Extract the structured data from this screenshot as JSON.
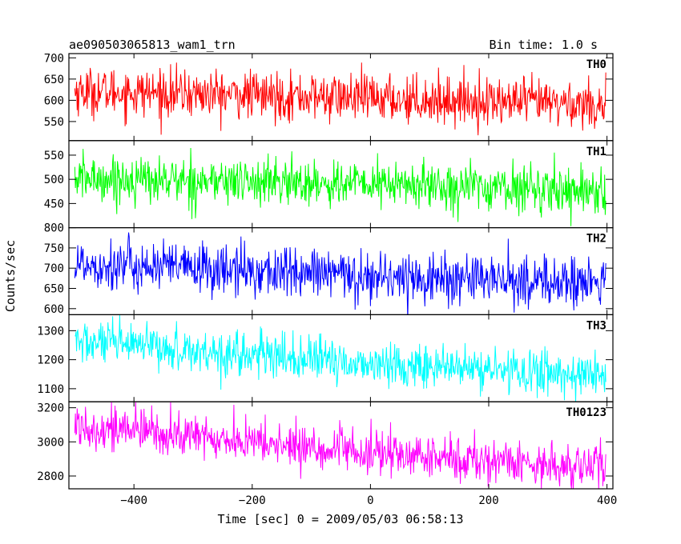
{
  "header": {
    "left": "ae090503065813_wam1_trn",
    "right": "Bin time: 1.0 s"
  },
  "chart_data": {
    "type": "line",
    "xlabel": "Time [sec] 0 = 2009/05/03 06:58:13",
    "ylabel": "Counts/sec",
    "xlim": [
      -510,
      410
    ],
    "xticks": [
      -400,
      -200,
      0,
      200,
      400
    ],
    "x_step": 1.0,
    "x_range": [
      -500,
      398
    ],
    "panels": [
      {
        "name": "TH0",
        "color": "#ff0000",
        "ylim": [
          505,
          710
        ],
        "yticks": [
          550,
          600,
          650,
          700
        ],
        "trend": [
          [
            -500,
            622
          ],
          [
            0,
            605
          ],
          [
            400,
            590
          ]
        ],
        "noise": 28
      },
      {
        "name": "TH1",
        "color": "#00ff00",
        "ylim": [
          400,
          580
        ],
        "yticks": [
          450,
          500,
          550
        ],
        "trend": [
          [
            -500,
            502
          ],
          [
            0,
            490
          ],
          [
            400,
            477
          ]
        ],
        "noise": 24
      },
      {
        "name": "TH2",
        "color": "#0000ff",
        "ylim": [
          585,
          800
        ],
        "yticks": [
          600,
          650,
          700,
          750,
          800
        ],
        "trend": [
          [
            -500,
            712
          ],
          [
            0,
            680
          ],
          [
            400,
            662
          ]
        ],
        "noise": 32
      },
      {
        "name": "TH3",
        "color": "#00ffff",
        "ylim": [
          1055,
          1355
        ],
        "yticks": [
          1100,
          1200,
          1300
        ],
        "trend": [
          [
            -500,
            1262
          ],
          [
            0,
            1185
          ],
          [
            400,
            1145
          ]
        ],
        "noise": 38
      },
      {
        "name": "TH0123",
        "color": "#ff00ff",
        "ylim": [
          2725,
          3235
        ],
        "yticks": [
          2800,
          3000,
          3200
        ],
        "trend": [
          [
            -500,
            3100
          ],
          [
            0,
            2930
          ],
          [
            400,
            2850
          ]
        ],
        "noise": 65
      }
    ]
  }
}
